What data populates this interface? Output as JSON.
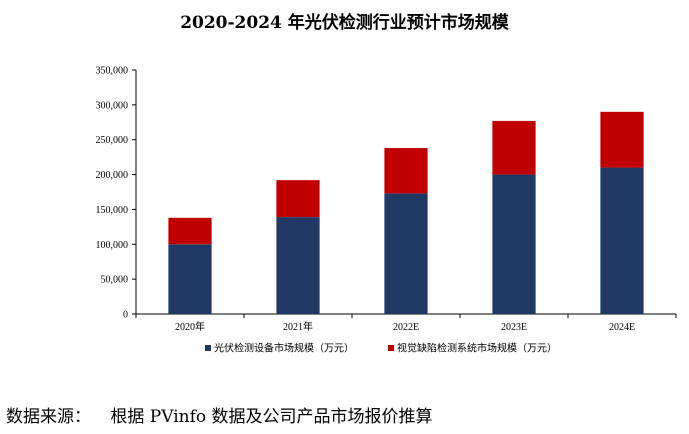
{
  "chart_data": {
    "type": "bar",
    "stacked": true,
    "title": "2020-2024 年光伏检测行业预计市场规模",
    "categories": [
      "2020年",
      "2021年",
      "2022E",
      "2023E",
      "2024E"
    ],
    "series": [
      {
        "name": "光伏检测设备市场规模（万元）",
        "color": "#203864",
        "values": [
          100000,
          139000,
          173000,
          200000,
          210000
        ]
      },
      {
        "name": "视觉缺陷检测系统市场规模（万元）",
        "color": "#c00000",
        "values": [
          38000,
          53000,
          65000,
          77000,
          80000
        ]
      }
    ],
    "yticks": [
      "0",
      "50,000",
      "100,000",
      "150,000",
      "200,000",
      "250,000",
      "300,000",
      "350,000"
    ],
    "ylim": [
      0,
      350000
    ],
    "grid": false,
    "legend_position": "bottom"
  },
  "source": {
    "label": "数据来源：",
    "text": "根据 PVinfo 数据及公司产品市场报价推算"
  }
}
